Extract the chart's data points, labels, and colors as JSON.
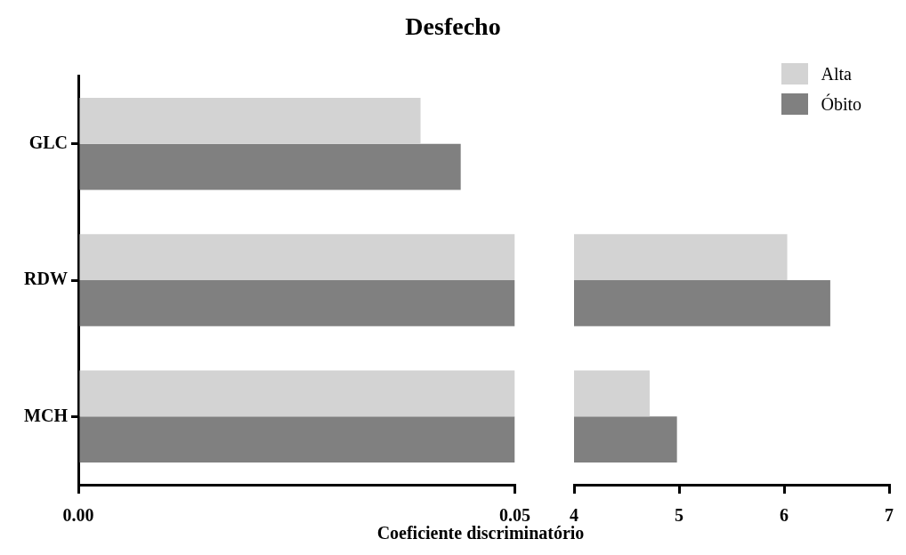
{
  "chart_data": [
    {
      "type": "bar",
      "orientation": "horizontal",
      "title": "Desfecho",
      "xlabel": "Coeficiente discriminatório",
      "categories": [
        "GLC",
        "RDW",
        "MCH"
      ],
      "xlim": [
        0,
        0.05
      ],
      "xticks": [
        {
          "value": 0,
          "label": "0.00"
        },
        0.05
      ],
      "legend": false,
      "grid": false,
      "series": [
        {
          "color": "#d3d3d3",
          "values": [
            0.0392,
            0.05,
            0.05
          ]
        },
        {
          "color": "#808080",
          "values": [
            0.0438,
            0.05,
            0.05
          ]
        }
      ]
    },
    {
      "type": "bar",
      "orientation": "horizontal",
      "categories": [
        null,
        null,
        null
      ],
      "xlim": [
        4,
        7
      ],
      "xticks": [
        4,
        5,
        6,
        7
      ],
      "legend": "top right",
      "grid": false,
      "tick_labels": "x",
      "series": [
        {
          "name": "Alta",
          "color": "#d3d3d3",
          "values": [
            null,
            6.03,
            4.72
          ]
        },
        {
          "name": "Óbito",
          "color": "#808080",
          "values": [
            null,
            6.44,
            4.98
          ]
        }
      ]
    }
  ]
}
